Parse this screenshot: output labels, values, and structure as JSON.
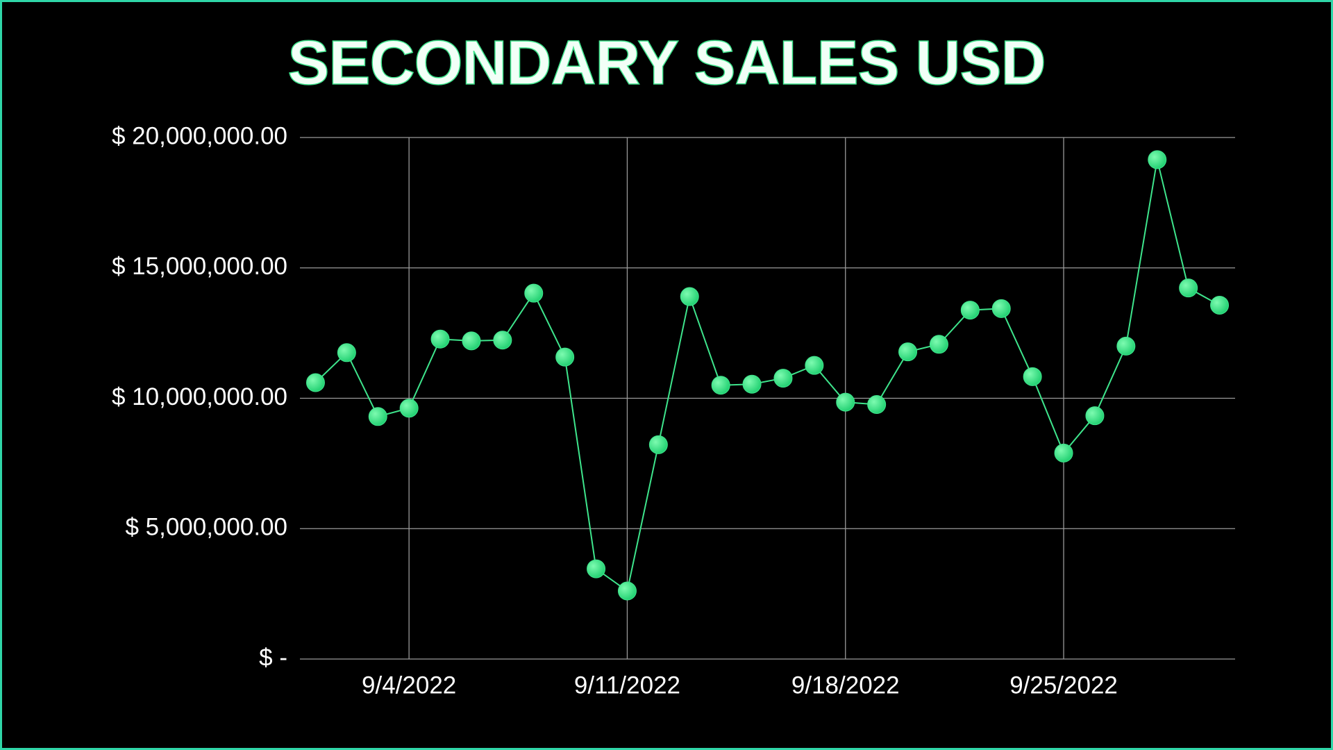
{
  "chart_data": {
    "type": "line",
    "title": "SECONDARY SALES USD",
    "categories": [
      null,
      null,
      null,
      "9/4/2022",
      null,
      null,
      null,
      null,
      null,
      null,
      "9/11/2022",
      null,
      null,
      null,
      null,
      null,
      null,
      "9/18/2022",
      null,
      null,
      null,
      null,
      null,
      null,
      "9/25/2022",
      null,
      null,
      null,
      null,
      null
    ],
    "series": [
      {
        "name": "Secondary Sales USD",
        "color": "#3ee58c",
        "values": [
          10600000,
          11750000,
          9300000,
          9620000,
          12270000,
          12200000,
          12230000,
          14030000,
          11580000,
          3460000,
          2610000,
          8220000,
          13900000,
          10500000,
          10540000,
          10770000,
          11260000,
          9850000,
          9760000,
          11780000,
          12070000,
          13380000,
          13440000,
          10830000,
          7900000,
          9330000,
          12000000,
          19150000,
          14230000,
          13570000
        ]
      }
    ],
    "ylim": [
      0,
      20000000
    ],
    "yticks": [
      {
        "value": 0,
        "label": "$ -"
      },
      {
        "value": 5000000,
        "label": "$ 5,000,000.00"
      },
      {
        "value": 10000000,
        "label": "$ 10,000,000.00"
      },
      {
        "value": 15000000,
        "label": "$ 15,000,000.00"
      },
      {
        "value": 20000000,
        "label": "$ 20,000,000.00"
      }
    ],
    "grid": true
  }
}
